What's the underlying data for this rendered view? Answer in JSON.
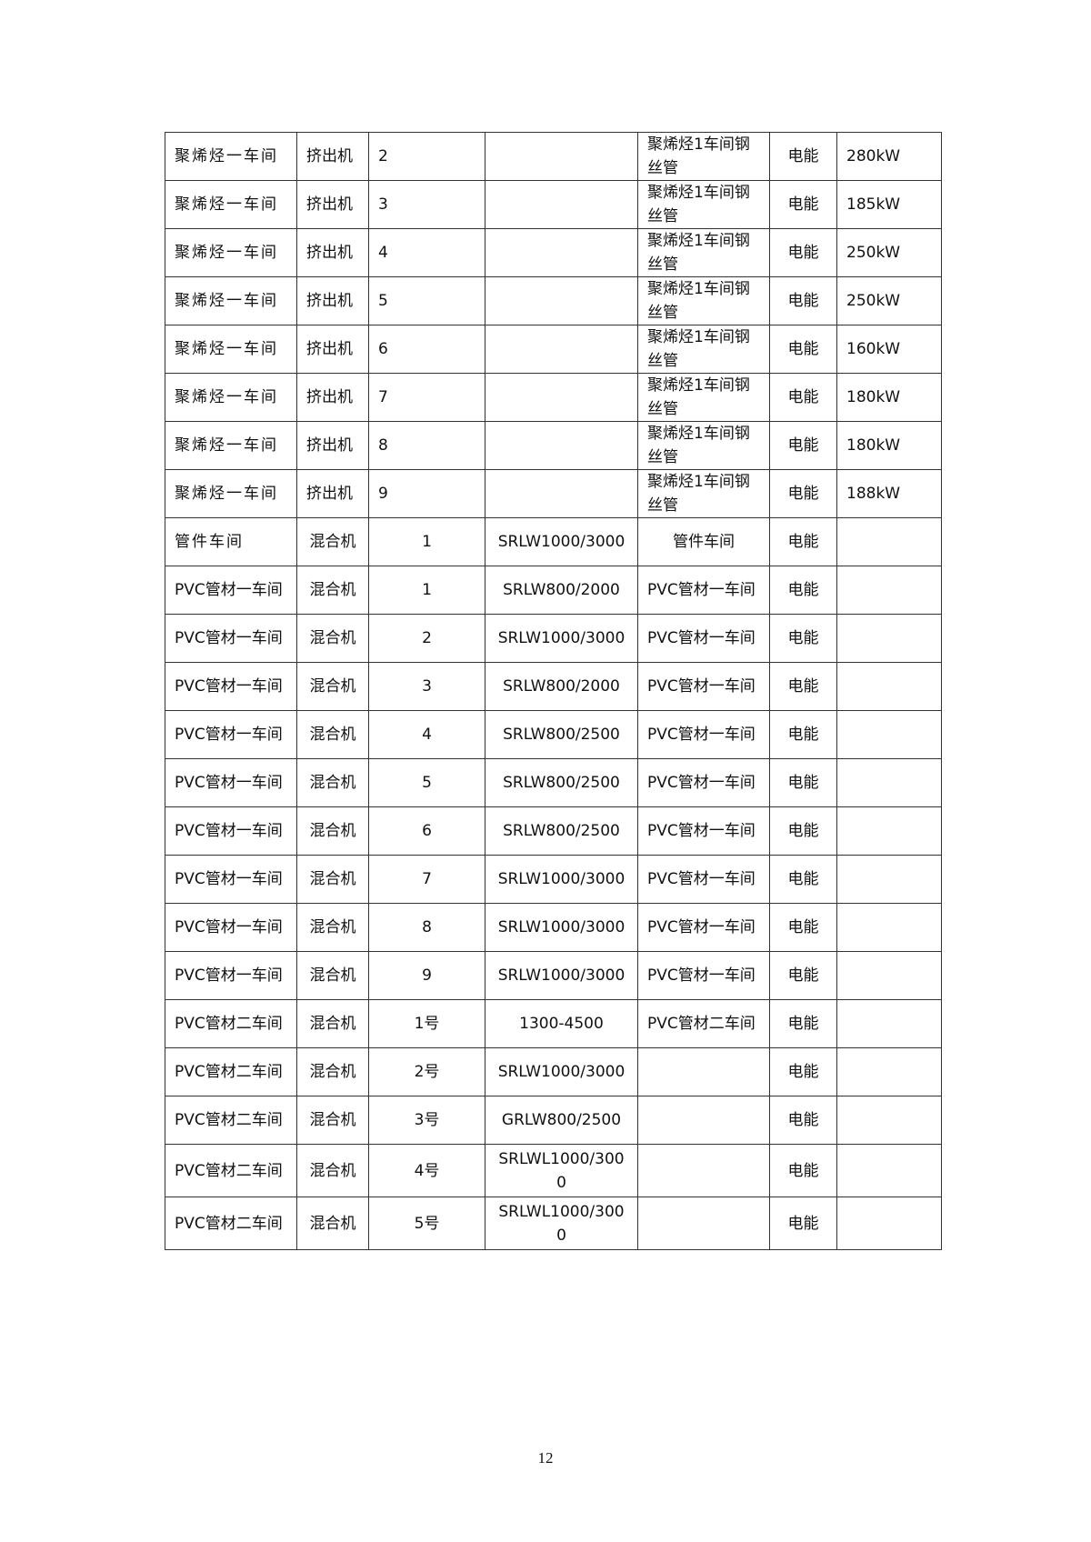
{
  "table": {
    "rows": [
      {
        "workshop": "聚烯烃一车间",
        "equipment": "挤出机",
        "number": "2",
        "model": "",
        "location": "聚烯烃1车间钢丝管",
        "energy": "电能",
        "power": "280kW",
        "centered": false
      },
      {
        "workshop": "聚烯烃一车间",
        "equipment": "挤出机",
        "number": "3",
        "model": "",
        "location": "聚烯烃1车间钢丝管",
        "energy": "电能",
        "power": "185kW",
        "centered": false
      },
      {
        "workshop": "聚烯烃一车间",
        "equipment": "挤出机",
        "number": "4",
        "model": "",
        "location": "聚烯烃1车间钢丝管",
        "energy": "电能",
        "power": "250kW",
        "centered": false
      },
      {
        "workshop": "聚烯烃一车间",
        "equipment": "挤出机",
        "number": "5",
        "model": "",
        "location": "聚烯烃1车间钢丝管",
        "energy": "电能",
        "power": "250kW",
        "centered": false
      },
      {
        "workshop": "聚烯烃一车间",
        "equipment": "挤出机",
        "number": "6",
        "model": "",
        "location": "聚烯烃1车间钢丝管",
        "energy": "电能",
        "power": "160kW",
        "centered": false
      },
      {
        "workshop": "聚烯烃一车间",
        "equipment": "挤出机",
        "number": "7",
        "model": "",
        "location": "聚烯烃1车间钢丝管",
        "energy": "电能",
        "power": "180kW",
        "centered": false
      },
      {
        "workshop": "聚烯烃一车间",
        "equipment": "挤出机",
        "number": "8",
        "model": "",
        "location": "聚烯烃1车间钢丝管",
        "energy": "电能",
        "power": "180kW",
        "centered": false
      },
      {
        "workshop": "聚烯烃一车间",
        "equipment": "挤出机",
        "number": "9",
        "model": "",
        "location": "聚烯烃1车间钢丝管",
        "energy": "电能",
        "power": "188kW",
        "centered": false
      },
      {
        "workshop": "管件车间",
        "equipment": "混合机",
        "number": "1",
        "model": "SRLW1000/3000",
        "location": "管件车间",
        "energy": "电能",
        "power": "",
        "centered": true
      },
      {
        "workshop": "PVC管材一车间",
        "equipment": "混合机",
        "number": "1",
        "model": "SRLW800/2000",
        "location": "PVC管材一车间",
        "energy": "电能",
        "power": "",
        "centered": true
      },
      {
        "workshop": "PVC管材一车间",
        "equipment": "混合机",
        "number": "2",
        "model": "SRLW1000/3000",
        "location": "PVC管材一车间",
        "energy": "电能",
        "power": "",
        "centered": true
      },
      {
        "workshop": "PVC管材一车间",
        "equipment": "混合机",
        "number": "3",
        "model": "SRLW800/2000",
        "location": "PVC管材一车间",
        "energy": "电能",
        "power": "",
        "centered": true
      },
      {
        "workshop": "PVC管材一车间",
        "equipment": "混合机",
        "number": "4",
        "model": "SRLW800/2500",
        "location": "PVC管材一车间",
        "energy": "电能",
        "power": "",
        "centered": true
      },
      {
        "workshop": "PVC管材一车间",
        "equipment": "混合机",
        "number": "5",
        "model": "SRLW800/2500",
        "location": "PVC管材一车间",
        "energy": "电能",
        "power": "",
        "centered": true
      },
      {
        "workshop": "PVC管材一车间",
        "equipment": "混合机",
        "number": "6",
        "model": "SRLW800/2500",
        "location": "PVC管材一车间",
        "energy": "电能",
        "power": "",
        "centered": true
      },
      {
        "workshop": "PVC管材一车间",
        "equipment": "混合机",
        "number": "7",
        "model": "SRLW1000/3000",
        "location": "PVC管材一车间",
        "energy": "电能",
        "power": "",
        "centered": true
      },
      {
        "workshop": "PVC管材一车间",
        "equipment": "混合机",
        "number": "8",
        "model": "SRLW1000/3000",
        "location": "PVC管材一车间",
        "energy": "电能",
        "power": "",
        "centered": true
      },
      {
        "workshop": "PVC管材一车间",
        "equipment": "混合机",
        "number": "9",
        "model": "SRLW1000/3000",
        "location": "PVC管材一车间",
        "energy": "电能",
        "power": "",
        "centered": true
      },
      {
        "workshop": "PVC管材二车间",
        "equipment": "混合机",
        "number": "1号",
        "model": "1300-4500",
        "location": "PVC管材二车间",
        "energy": "电能",
        "power": "",
        "centered": true
      },
      {
        "workshop": "PVC管材二车间",
        "equipment": "混合机",
        "number": "2号",
        "model": "SRLW1000/3000",
        "location": "",
        "energy": "电能",
        "power": "",
        "centered": true
      },
      {
        "workshop": "PVC管材二车间",
        "equipment": "混合机",
        "number": "3号",
        "model": "GRLW800/2500",
        "location": "",
        "energy": "电能",
        "power": "",
        "centered": true
      },
      {
        "workshop": "PVC管材二车间",
        "equipment": "混合机",
        "number": "4号",
        "model": "SRLWL1000/3000",
        "location": "",
        "energy": "电能",
        "power": "",
        "centered": true
      },
      {
        "workshop": "PVC管材二车间",
        "equipment": "混合机",
        "number": "5号",
        "model": "SRLWL1000/3000",
        "location": "",
        "energy": "电能",
        "power": "",
        "centered": true
      }
    ]
  },
  "footer": {
    "page_number": "12"
  }
}
